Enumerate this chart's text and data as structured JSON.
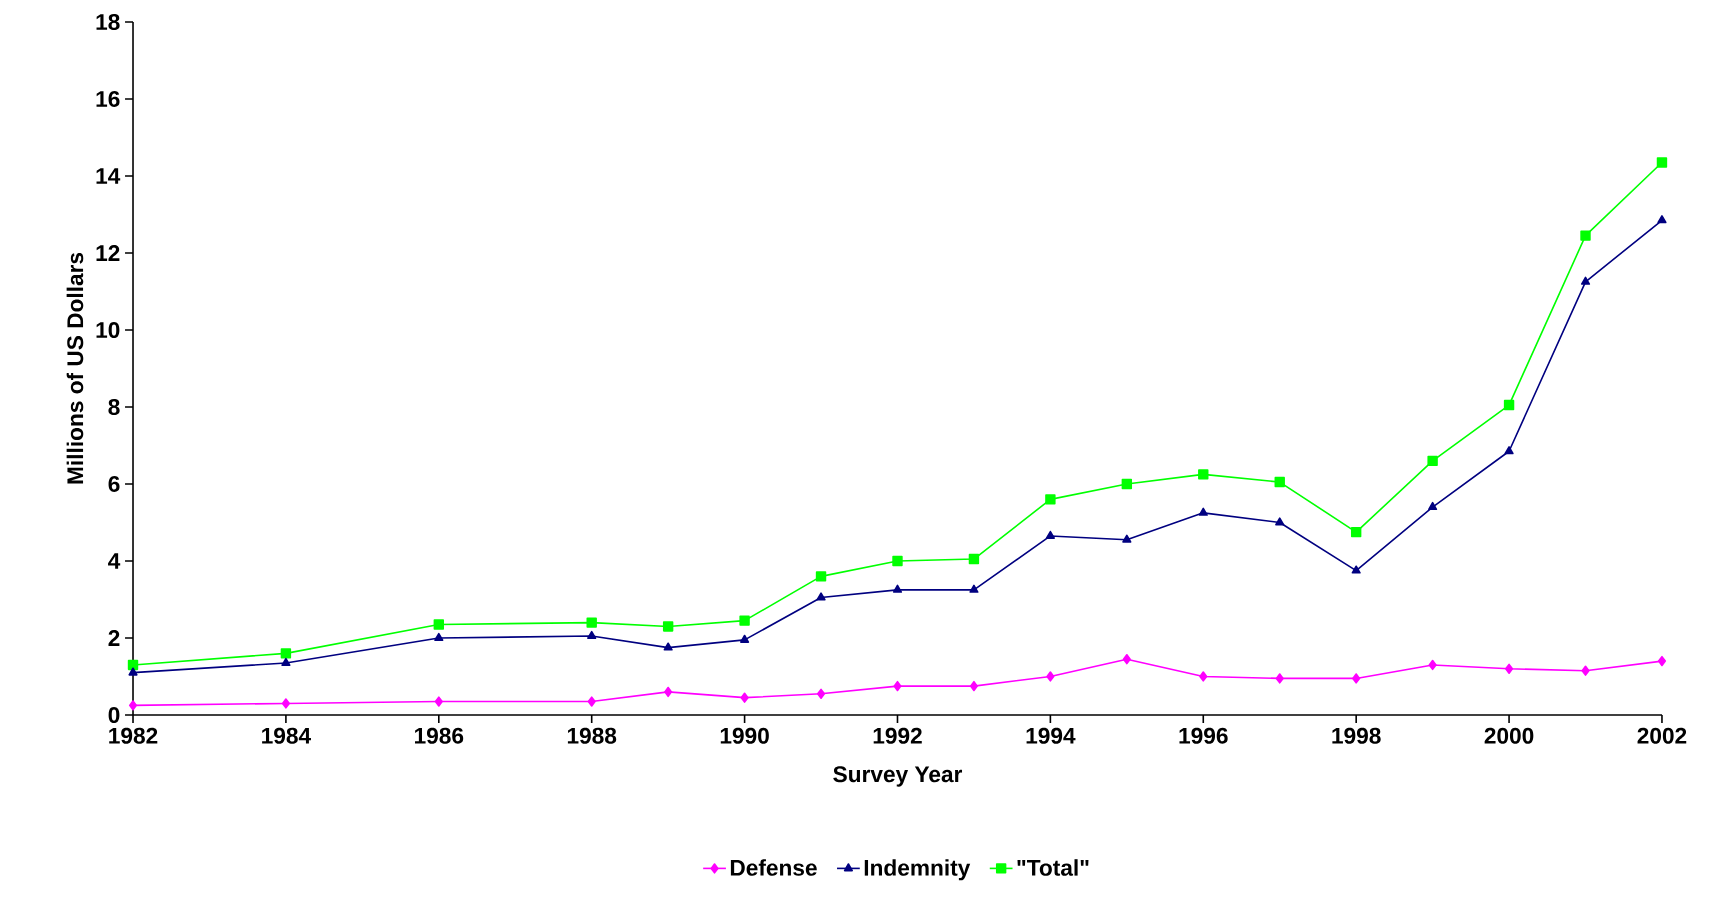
{
  "chart_data": {
    "type": "line",
    "xlabel": "Survey Year",
    "ylabel": "Millions of US Dollars",
    "x": [
      1982,
      1984,
      1986,
      1988,
      1989,
      1990,
      1991,
      1992,
      1993,
      1994,
      1995,
      1996,
      1997,
      1998,
      1999,
      2000,
      2001,
      2002
    ],
    "series": [
      {
        "name": "Defense",
        "color": "#ff00ff",
        "marker": "diamond",
        "values": [
          0.25,
          0.3,
          0.35,
          0.35,
          0.6,
          0.45,
          0.55,
          0.75,
          0.75,
          1.0,
          1.45,
          1.0,
          0.95,
          0.95,
          1.3,
          1.2,
          1.15,
          1.4
        ]
      },
      {
        "name": "Indemnity",
        "color": "#000080",
        "marker": "triangle",
        "values": [
          1.1,
          1.35,
          2.0,
          2.05,
          1.75,
          1.95,
          3.05,
          3.25,
          3.25,
          4.65,
          4.55,
          5.25,
          5.0,
          3.75,
          5.4,
          6.85,
          11.25,
          12.85
        ]
      },
      {
        "name": "\"Total\"",
        "color": "#00ff00",
        "marker": "square",
        "values": [
          1.3,
          1.6,
          2.35,
          2.4,
          2.3,
          2.45,
          3.6,
          4.0,
          4.05,
          5.6,
          6.0,
          6.25,
          6.05,
          4.75,
          6.6,
          8.05,
          12.45,
          14.35
        ]
      }
    ],
    "xlim": [
      1982,
      2002
    ],
    "xticks": [
      1982,
      1984,
      1986,
      1988,
      1990,
      1992,
      1994,
      1996,
      1998,
      2000,
      2002
    ],
    "ylim": [
      0,
      18
    ],
    "yticks": [
      0,
      2,
      4,
      6,
      8,
      10,
      12,
      14,
      16,
      18
    ],
    "grid": false,
    "legend": "bottom"
  }
}
